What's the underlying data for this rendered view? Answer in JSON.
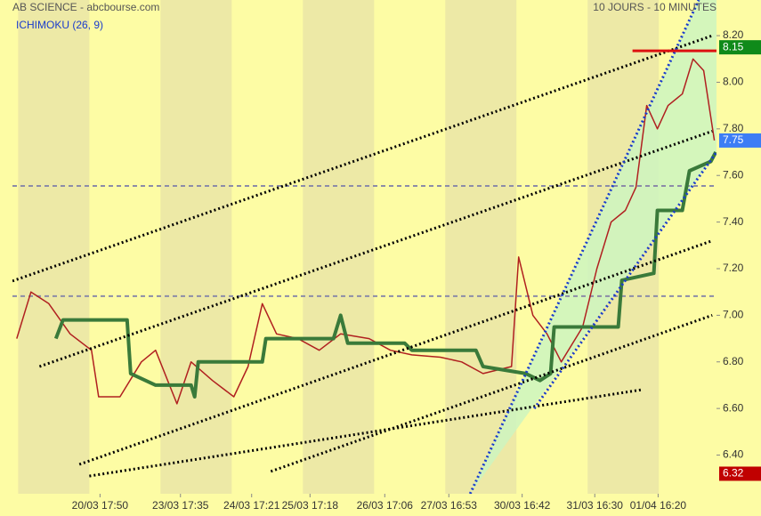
{
  "chart_data": {
    "type": "line",
    "title": "AB SCIENCE - abcbourse.com",
    "subtitle": "10 JOURS - 10 MINUTES",
    "annotations": [
      "ICHIMOKU (26, 9)"
    ],
    "xlim": [
      -0.08,
      9.81
    ],
    "ylim": [
      6.234,
      8.353
    ],
    "xticks": [
      {
        "value": 1.15,
        "label": "20/03 17:50"
      },
      {
        "value": 2.28,
        "label": "23/03 17:35"
      },
      {
        "value": 3.28,
        "label": "24/03 17:21"
      },
      {
        "value": 4.1,
        "label": "25/03 17:18"
      },
      {
        "value": 5.15,
        "label": "26/03 17:06"
      },
      {
        "value": 6.05,
        "label": "27/03 16:53"
      },
      {
        "value": 7.08,
        "label": "30/03 16:42"
      },
      {
        "value": 8.1,
        "label": "31/03 16:30"
      },
      {
        "value": 8.99,
        "label": "01/04 16:20"
      }
    ],
    "yticks": [
      {
        "value": 6.4,
        "label": "6.40"
      },
      {
        "value": 6.6,
        "label": "6.60"
      },
      {
        "value": 6.8,
        "label": "6.80"
      },
      {
        "value": 7.0,
        "label": "7.00"
      },
      {
        "value": 7.2,
        "label": "7.20"
      },
      {
        "value": 7.4,
        "label": "7.40"
      },
      {
        "value": 7.6,
        "label": "7.60"
      },
      {
        "value": 7.8,
        "label": "7.80"
      },
      {
        "value": 8.0,
        "label": "8.00"
      },
      {
        "value": 8.2,
        "label": "8.20"
      }
    ],
    "series": [
      {
        "color": "#b02020",
        "x": [
          -0.02,
          0.18,
          0.43,
          0.73,
          1.03,
          1.13,
          1.43,
          1.73,
          1.93,
          2.23,
          2.43,
          2.73,
          3.03,
          3.23,
          3.43,
          3.63,
          3.93,
          4.23,
          4.53,
          4.93,
          5.23,
          5.53,
          5.93,
          6.23,
          6.53,
          6.93,
          7.03,
          7.23,
          7.43,
          7.63,
          7.93,
          8.13,
          8.33,
          8.53,
          8.68,
          8.83,
          8.98,
          9.13,
          9.33,
          9.48,
          9.63,
          9.78
        ],
        "values": [
          6.9,
          7.1,
          7.05,
          6.92,
          6.85,
          6.65,
          6.65,
          6.8,
          6.85,
          6.62,
          6.8,
          6.72,
          6.65,
          6.78,
          7.05,
          6.92,
          6.9,
          6.85,
          6.92,
          6.9,
          6.85,
          6.83,
          6.82,
          6.8,
          6.75,
          6.78,
          7.25,
          7.0,
          6.92,
          6.8,
          6.95,
          7.2,
          7.4,
          7.45,
          7.55,
          7.9,
          7.8,
          7.9,
          7.95,
          8.1,
          8.05,
          7.75
        ]
      },
      {
        "color": "#3a7a3a",
        "x": [
          0.53,
          0.63,
          1.53,
          1.58,
          1.93,
          2.43,
          2.48,
          2.53,
          3.43,
          3.48,
          4.43,
          4.53,
          4.63,
          5.43,
          5.53,
          6.43,
          6.53,
          7.13,
          7.33,
          7.48,
          7.53,
          8.43,
          8.48,
          8.93,
          8.98,
          9.33,
          9.43,
          9.73,
          9.8
        ],
        "values": [
          6.9,
          6.98,
          6.98,
          6.75,
          6.7,
          6.7,
          6.65,
          6.8,
          6.8,
          6.9,
          6.9,
          7.0,
          6.88,
          6.88,
          6.85,
          6.85,
          6.78,
          6.75,
          6.72,
          6.75,
          6.95,
          6.95,
          7.15,
          7.18,
          7.45,
          7.45,
          7.62,
          7.66,
          7.7
        ]
      }
    ],
    "trendlines": [
      {
        "x": [
          -0.08,
          9.75
        ],
        "y": [
          7.147,
          8.2
        ],
        "color": "#000000",
        "style": "dotted"
      },
      {
        "x": [
          0.3,
          9.75
        ],
        "y": [
          6.78,
          7.79
        ],
        "color": "#000000",
        "style": "dotted"
      },
      {
        "x": [
          0.86,
          9.75
        ],
        "y": [
          6.36,
          7.32
        ],
        "color": "#000000",
        "style": "dotted"
      },
      {
        "x": [
          3.55,
          9.75
        ],
        "y": [
          6.33,
          7.0
        ],
        "color": "#000000",
        "style": "dotted"
      },
      {
        "x": [
          1.0,
          8.75
        ],
        "y": [
          6.31,
          6.68
        ],
        "color": "#000000",
        "style": "dotted"
      },
      {
        "x": [
          6.35,
          9.56
        ],
        "y": [
          6.234,
          8.353
        ],
        "color": "#1a3ccc",
        "style": "dotted"
      },
      {
        "x": [
          7.25,
          9.81
        ],
        "y": [
          6.6,
          7.7
        ],
        "color": "#1a3ccc",
        "style": "dotted"
      },
      {
        "x": [
          8.63,
          9.81
        ],
        "y": [
          8.135,
          8.135
        ],
        "color": "#dd1111",
        "style": "solid"
      }
    ],
    "hlines": [
      {
        "value": 7.555,
        "color": "#8c8ca8"
      },
      {
        "value": 7.082,
        "color": "#8c8ca8"
      }
    ],
    "markers": [
      {
        "value": 8.15,
        "color": "#0f8a1a"
      },
      {
        "value": 7.75,
        "color": "#3d7df5"
      },
      {
        "value": 6.32,
        "color": "#c00000"
      }
    ]
  }
}
